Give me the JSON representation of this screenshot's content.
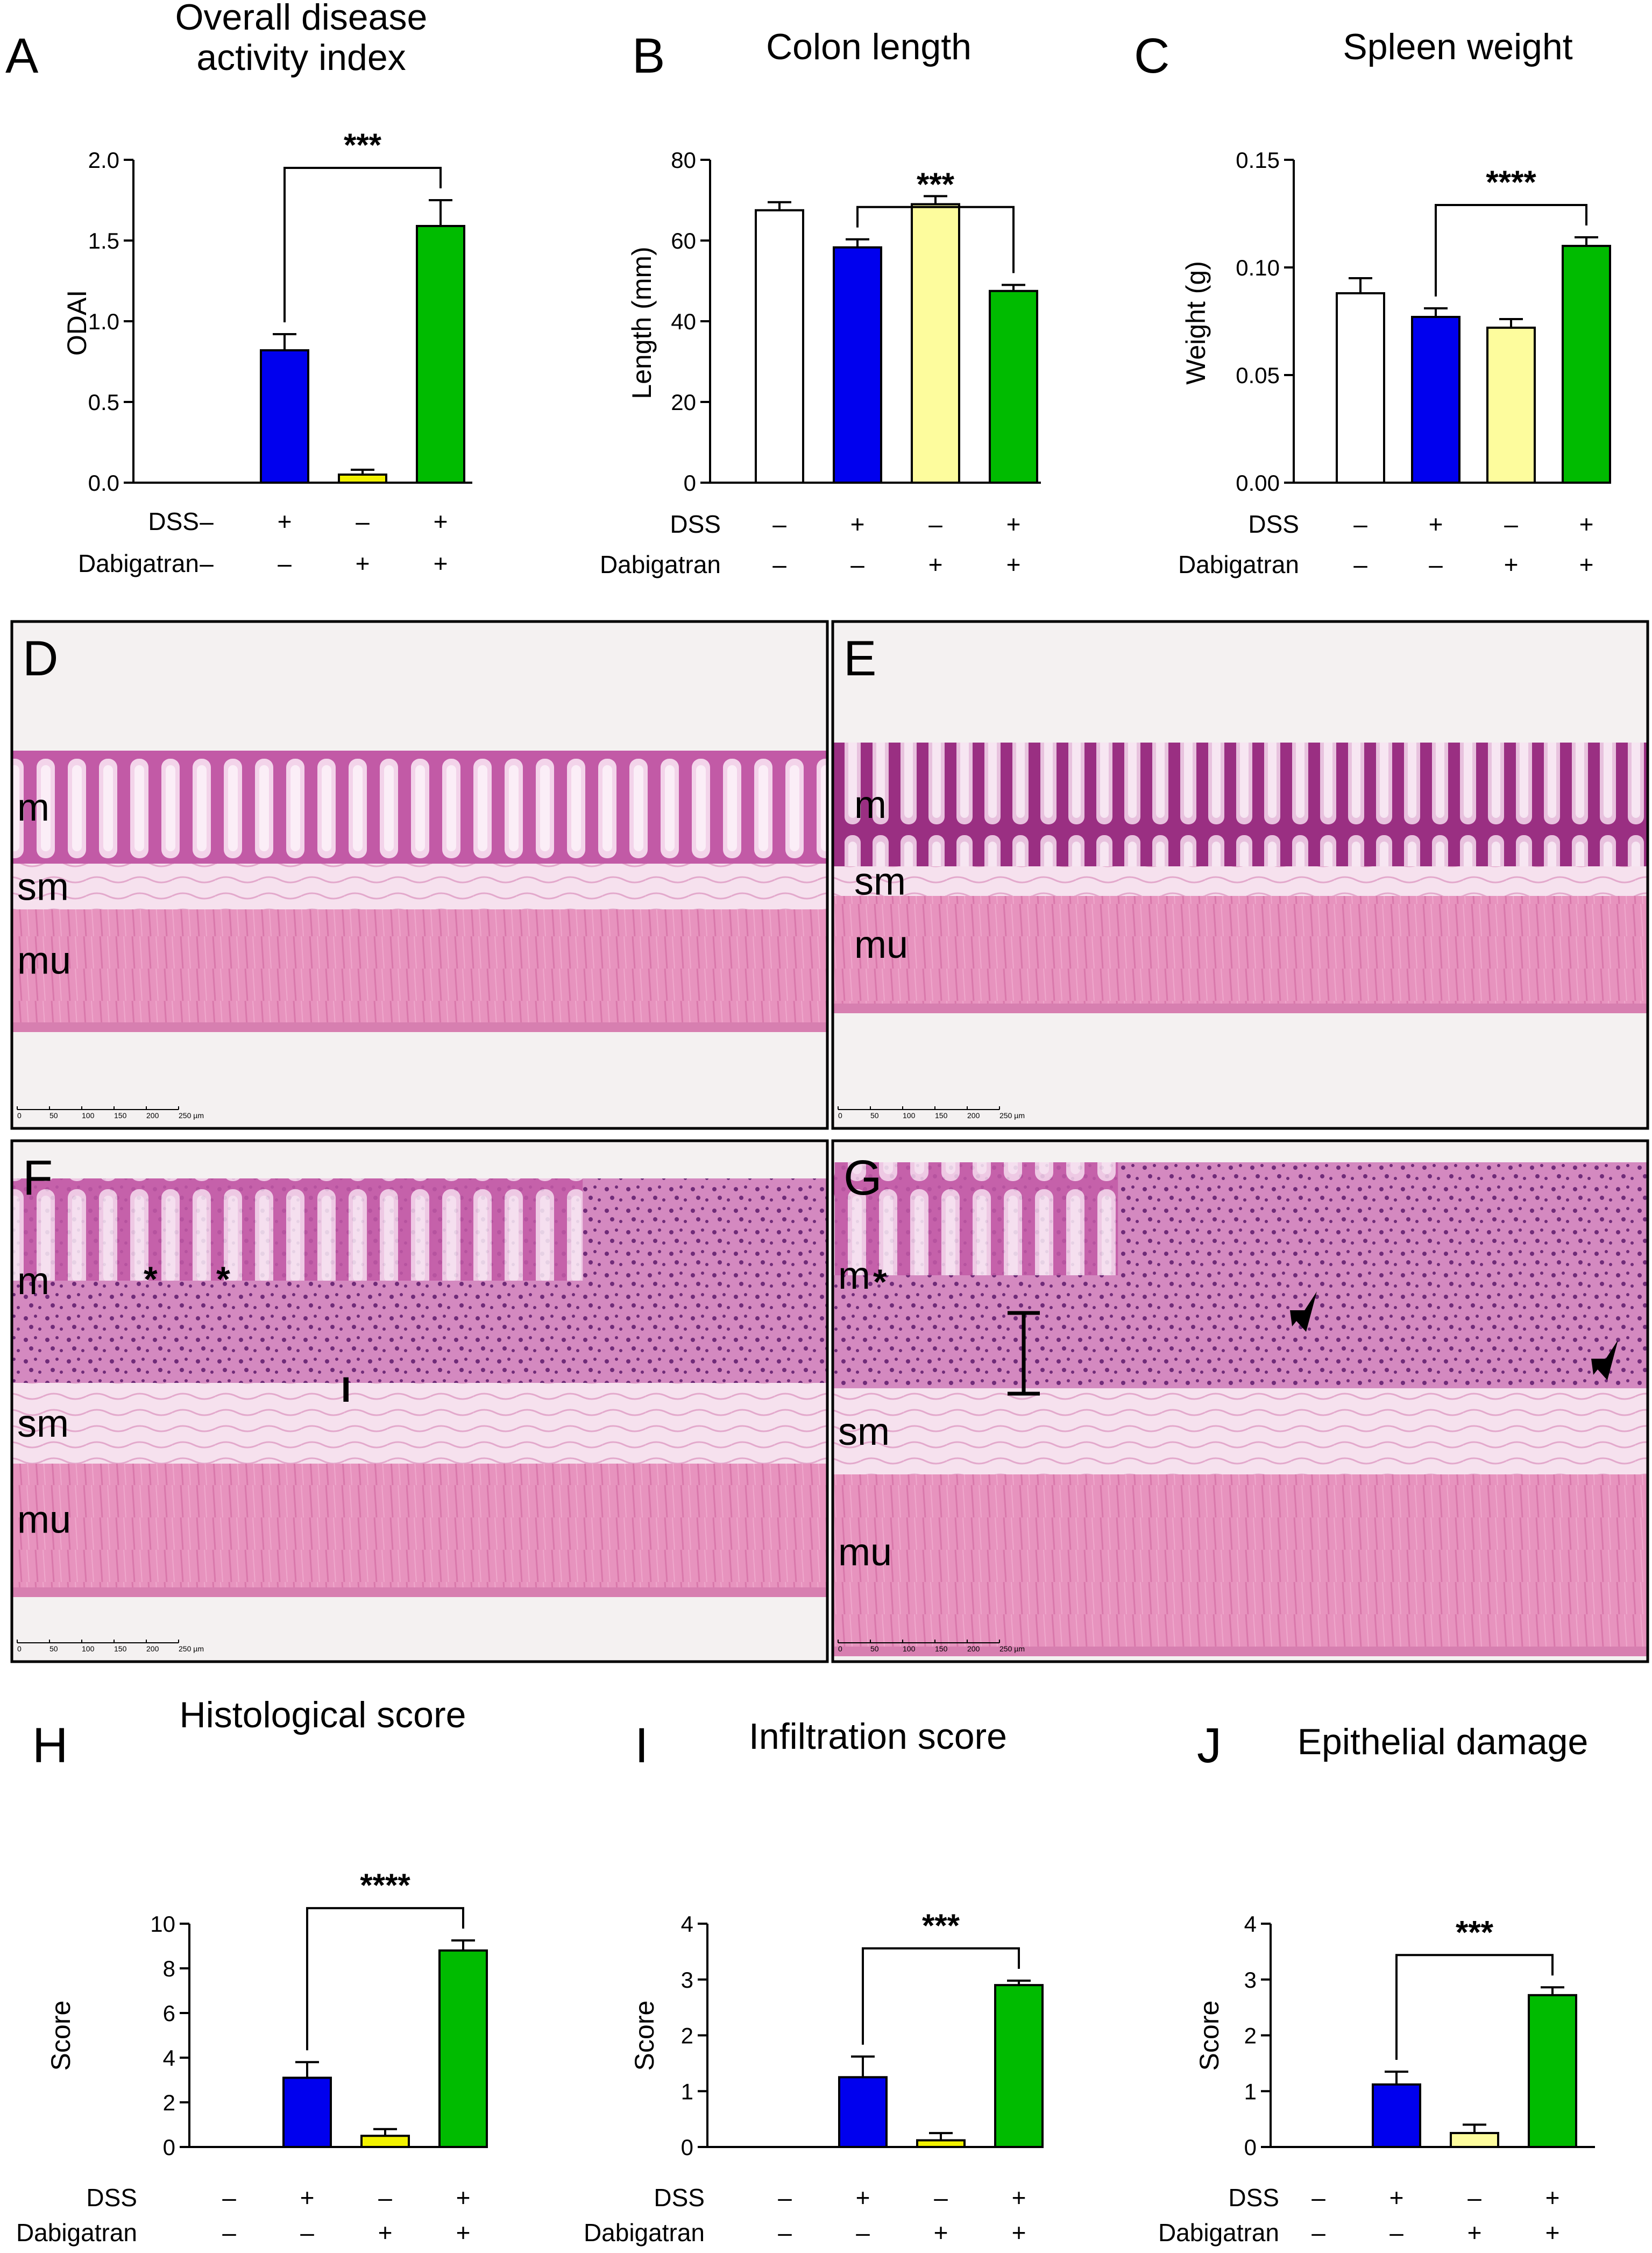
{
  "conditions": {
    "rows": [
      "DSS",
      "Dabigatran"
    ],
    "signs": [
      [
        "–",
        "+",
        "–",
        "+"
      ],
      [
        "–",
        "–",
        "+",
        "+"
      ]
    ]
  },
  "colors": {
    "control": "#ffffff",
    "dss": "#0000ee",
    "dabigatran": "#fdfc9d",
    "dss_dabigatran": "#00bb00",
    "dabigatran_bright": "#f2f200"
  },
  "chart_data": [
    {
      "id": "A",
      "panel_label": "A",
      "type": "bar",
      "title": "Overall disease activity index",
      "title_lines": [
        "Overall disease",
        "activity index"
      ],
      "ylabel": "ODAI",
      "ylim": [
        0,
        2.0
      ],
      "ticks": [
        "0.0",
        "0.5",
        "1.0",
        "1.5",
        "2.0"
      ],
      "categories": [
        "DSS– Dabigatran–",
        "DSS+ Dabigatran–",
        "DSS– Dabigatran+",
        "DSS+ Dabigatran+"
      ],
      "values": [
        0,
        0.82,
        0.05,
        1.59
      ],
      "errors": [
        0,
        0.1,
        0.03,
        0.16
      ],
      "colors": [
        "#ffffff",
        "#0000ee",
        "#f2f200",
        "#00bb00"
      ],
      "significance": {
        "from": 1,
        "to": 3,
        "label": "***"
      }
    },
    {
      "id": "B",
      "panel_label": "B",
      "type": "bar",
      "title": "Colon length",
      "title_lines": [
        "Colon length"
      ],
      "ylabel": "Length (mm)",
      "ylim": [
        0,
        80
      ],
      "ticks": [
        "0",
        "20",
        "40",
        "60",
        "80"
      ],
      "categories": [
        "DSS– Dabigatran–",
        "DSS+ Dabigatran–",
        "DSS– Dabigatran+",
        "DSS+ Dabigatran+"
      ],
      "values": [
        67.5,
        58.3,
        69.0,
        47.5
      ],
      "errors": [
        2.0,
        2.0,
        2.0,
        1.5
      ],
      "colors": [
        "#ffffff",
        "#0000ee",
        "#fdfc9d",
        "#00bb00"
      ],
      "significance": {
        "from": 1,
        "to": 3,
        "label": "***"
      }
    },
    {
      "id": "C",
      "panel_label": "C",
      "type": "bar",
      "title": "Spleen weight",
      "title_lines": [
        "Spleen weight"
      ],
      "ylabel": "Weight (g)",
      "ylim": [
        0,
        0.15
      ],
      "ticks": [
        "0.00",
        "0.05",
        "0.10",
        "0.15"
      ],
      "categories": [
        "DSS– Dabigatran–",
        "DSS+ Dabigatran–",
        "DSS– Dabigatran+",
        "DSS+ Dabigatran+"
      ],
      "values": [
        0.088,
        0.077,
        0.072,
        0.11
      ],
      "errors": [
        0.007,
        0.004,
        0.004,
        0.004
      ],
      "colors": [
        "#ffffff",
        "#0000ee",
        "#fdfc9d",
        "#00bb00"
      ],
      "significance": {
        "from": 1,
        "to": 3,
        "label": "****"
      }
    },
    {
      "id": "H",
      "panel_label": "H",
      "type": "bar",
      "title": "Histological score",
      "title_lines": [
        "Histological score"
      ],
      "ylabel": "Score",
      "ylim": [
        0,
        10
      ],
      "ticks": [
        "0",
        "2",
        "4",
        "6",
        "8",
        "10"
      ],
      "categories": [
        "DSS– Dabigatran–",
        "DSS+ Dabigatran–",
        "DSS– Dabigatran+",
        "DSS+ Dabigatran+"
      ],
      "values": [
        0,
        3.1,
        0.5,
        8.8
      ],
      "errors": [
        0,
        0.7,
        0.3,
        0.45
      ],
      "colors": [
        "#ffffff",
        "#0000ee",
        "#f2f200",
        "#00bb00"
      ],
      "significance": {
        "from": 1,
        "to": 3,
        "label": "****"
      }
    },
    {
      "id": "I",
      "panel_label": "I",
      "type": "bar",
      "title": "Infiltration score",
      "title_lines": [
        "Infiltration score"
      ],
      "ylabel": "Score",
      "ylim": [
        0,
        4
      ],
      "ticks": [
        "0",
        "1",
        "2",
        "3",
        "4"
      ],
      "categories": [
        "DSS– Dabigatran–",
        "DSS+ Dabigatran–",
        "DSS– Dabigatran+",
        "DSS+ Dabigatran+"
      ],
      "values": [
        0,
        1.25,
        0.12,
        2.9
      ],
      "errors": [
        0,
        0.37,
        0.13,
        0.08
      ],
      "colors": [
        "#ffffff",
        "#0000ee",
        "#f2f200",
        "#00bb00"
      ],
      "significance": {
        "from": 1,
        "to": 3,
        "label": "***"
      }
    },
    {
      "id": "J",
      "panel_label": "J",
      "type": "bar",
      "title": "Epithelial damage",
      "title_lines": [
        "Epithelial damage"
      ],
      "ylabel": "Score",
      "ylim": [
        0,
        4
      ],
      "ticks": [
        "0",
        "1",
        "2",
        "3",
        "4"
      ],
      "categories": [
        "DSS– Dabigatran–",
        "DSS+ Dabigatran–",
        "DSS– Dabigatran+",
        "DSS+ Dabigatran+"
      ],
      "values": [
        0,
        1.12,
        0.25,
        2.72
      ],
      "errors": [
        0,
        0.23,
        0.15,
        0.14
      ],
      "colors": [
        "#ffffff",
        "#0000ee",
        "#fdfc9d",
        "#00bb00"
      ],
      "significance": {
        "from": 1,
        "to": 3,
        "label": "***"
      }
    }
  ],
  "micrographs": [
    {
      "id": "D",
      "panel_label": "D",
      "layers": [
        "m",
        "sm",
        "mu"
      ],
      "scale_ticks": [
        "0",
        "50",
        "100",
        "150",
        "200",
        "250 µm"
      ],
      "marks": []
    },
    {
      "id": "E",
      "panel_label": "E",
      "layers": [
        "m",
        "sm",
        "mu"
      ],
      "scale_ticks": [
        "0",
        "50",
        "100",
        "150",
        "200",
        "250 µm"
      ],
      "marks": []
    },
    {
      "id": "F",
      "panel_label": "F",
      "layers": [
        "m",
        "sm",
        "mu"
      ],
      "scale_ticks": [
        "0",
        "50",
        "100",
        "150",
        "200",
        "250 µm"
      ],
      "marks": [
        "*",
        "*",
        "I"
      ]
    },
    {
      "id": "G",
      "panel_label": "G",
      "layers": [
        "m",
        "sm",
        "mu"
      ],
      "scale_ticks": [
        "0",
        "50",
        "100",
        "150",
        "200",
        "250 µm"
      ],
      "marks": [
        "*"
      ]
    }
  ]
}
